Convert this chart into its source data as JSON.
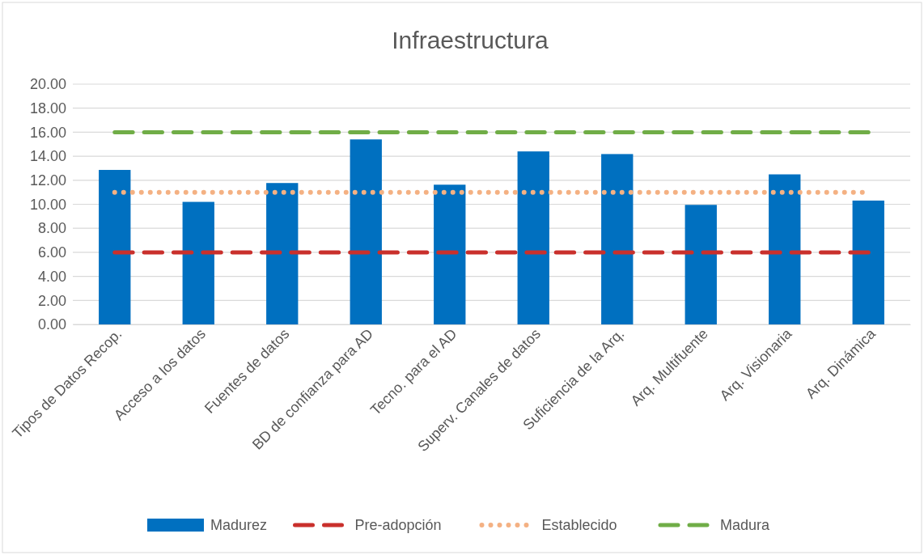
{
  "chart_data": {
    "type": "bar",
    "title": "Infraestructura",
    "categories": [
      "Tipos de Datos Recop.",
      "Acceso a los datos",
      "Fuentes de datos",
      "BD de confianza para AD",
      "Tecno. para el AD",
      "Superv. Canales de datos",
      "Suficiencia de la Arq.",
      "Arq. Multifuente",
      "Arq. Visionaria",
      "Arq. Dinámica"
    ],
    "series": [
      {
        "name": "Madurez",
        "color": "#0070c0",
        "values": [
          12.86,
          10.2,
          11.77,
          15.4,
          11.63,
          14.4,
          14.18,
          9.95,
          12.49,
          10.31
        ]
      },
      {
        "name": "Pre-adopción",
        "type": "line",
        "line_style": "dashed",
        "color": "#c9302c",
        "values": [
          6,
          6,
          6,
          6,
          6,
          6,
          6,
          6,
          6,
          6
        ]
      },
      {
        "name": "Establecido",
        "type": "line",
        "line_style": "dotted",
        "color": "#f4b183",
        "values": [
          11,
          11,
          11,
          11,
          11,
          11,
          11,
          11,
          11,
          11
        ]
      },
      {
        "name": "Madura",
        "type": "line",
        "line_style": "dashed",
        "color": "#70ad47",
        "values": [
          16,
          16,
          16,
          16,
          16,
          16,
          16,
          16,
          16,
          16
        ]
      }
    ],
    "ylim": [
      0,
      20
    ],
    "yticks": [
      {
        "value": 0,
        "label": "0.00"
      },
      {
        "value": 2,
        "label": "2.00"
      },
      {
        "value": 4,
        "label": "4.00"
      },
      {
        "value": 6,
        "label": "6.00"
      },
      {
        "value": 8,
        "label": "8.00"
      },
      {
        "value": 10,
        "label": "10.00"
      },
      {
        "value": 12,
        "label": "12.00"
      },
      {
        "value": 14,
        "label": "14.00"
      },
      {
        "value": 16,
        "label": "16.00"
      },
      {
        "value": 18,
        "label": "18.00"
      },
      {
        "value": 20,
        "label": "20.00"
      }
    ],
    "grid": "y",
    "legend": "bottom"
  }
}
